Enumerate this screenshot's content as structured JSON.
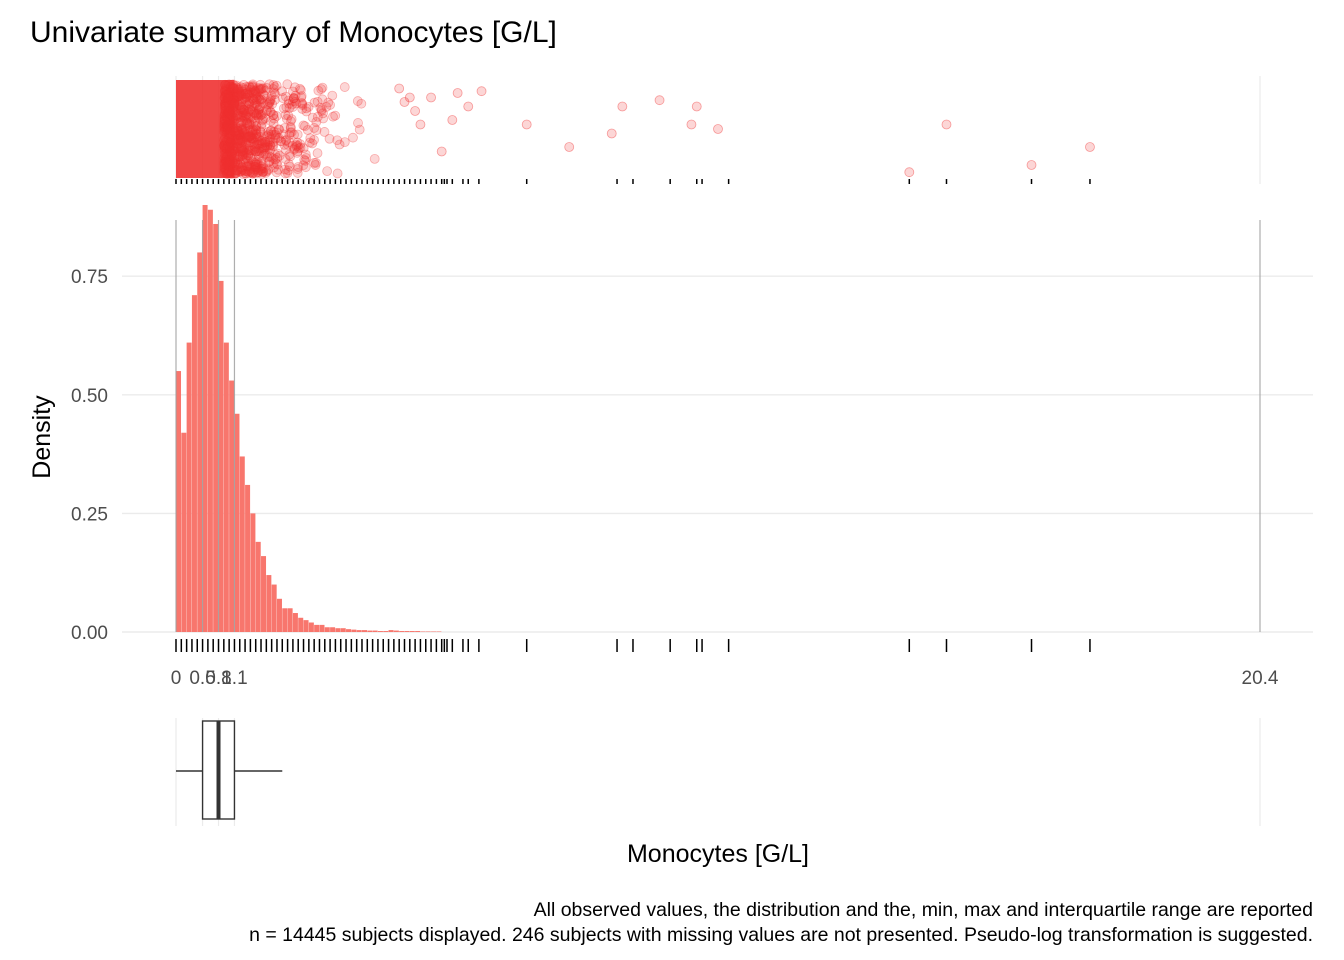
{
  "chart_data": {
    "type": "histogram",
    "title": "Univariate summary of Monocytes [G/L]",
    "xlabel": "Monocytes [G/L]",
    "ylabel": "Density",
    "xlim": [
      0,
      20.4
    ],
    "ylim": [
      0,
      0.9
    ],
    "y_ticks": [
      0,
      0.25,
      0.5,
      0.75
    ],
    "y_tick_labels": [
      "0.00",
      "0.25",
      "0.50",
      "0.75"
    ],
    "x_tick_values": [
      0,
      0.5,
      0.8,
      1.1,
      20.4
    ],
    "x_tick_labels": [
      "0",
      "0.5",
      "0.8",
      "1.1",
      "20.4"
    ],
    "grid": true,
    "color": "#F8766D",
    "point_color": "#F03232",
    "bin_width": 0.1,
    "bins": [
      {
        "x0": 0.0,
        "x1": 0.1,
        "density": 0.55
      },
      {
        "x0": 0.1,
        "x1": 0.2,
        "density": 0.42
      },
      {
        "x0": 0.2,
        "x1": 0.3,
        "density": 0.61
      },
      {
        "x0": 0.3,
        "x1": 0.4,
        "density": 0.71
      },
      {
        "x0": 0.4,
        "x1": 0.5,
        "density": 0.8
      },
      {
        "x0": 0.5,
        "x1": 0.6,
        "density": 0.9
      },
      {
        "x0": 0.6,
        "x1": 0.7,
        "density": 0.89
      },
      {
        "x0": 0.7,
        "x1": 0.8,
        "density": 0.86
      },
      {
        "x0": 0.8,
        "x1": 0.9,
        "density": 0.74
      },
      {
        "x0": 0.9,
        "x1": 1.0,
        "density": 0.61
      },
      {
        "x0": 1.0,
        "x1": 1.1,
        "density": 0.53
      },
      {
        "x0": 1.1,
        "x1": 1.2,
        "density": 0.46
      },
      {
        "x0": 1.2,
        "x1": 1.3,
        "density": 0.37
      },
      {
        "x0": 1.3,
        "x1": 1.4,
        "density": 0.31
      },
      {
        "x0": 1.4,
        "x1": 1.5,
        "density": 0.25
      },
      {
        "x0": 1.5,
        "x1": 1.6,
        "density": 0.19
      },
      {
        "x0": 1.6,
        "x1": 1.7,
        "density": 0.16
      },
      {
        "x0": 1.7,
        "x1": 1.8,
        "density": 0.12
      },
      {
        "x0": 1.8,
        "x1": 1.9,
        "density": 0.1
      },
      {
        "x0": 1.9,
        "x1": 2.0,
        "density": 0.07
      },
      {
        "x0": 2.0,
        "x1": 2.1,
        "density": 0.05
      },
      {
        "x0": 2.1,
        "x1": 2.2,
        "density": 0.05
      },
      {
        "x0": 2.2,
        "x1": 2.3,
        "density": 0.04
      },
      {
        "x0": 2.3,
        "x1": 2.4,
        "density": 0.03
      },
      {
        "x0": 2.4,
        "x1": 2.5,
        "density": 0.025
      },
      {
        "x0": 2.5,
        "x1": 2.6,
        "density": 0.02
      },
      {
        "x0": 2.6,
        "x1": 2.7,
        "density": 0.015
      },
      {
        "x0": 2.7,
        "x1": 2.8,
        "density": 0.015
      },
      {
        "x0": 2.8,
        "x1": 2.9,
        "density": 0.01
      },
      {
        "x0": 2.9,
        "x1": 3.0,
        "density": 0.01
      },
      {
        "x0": 3.0,
        "x1": 3.1,
        "density": 0.008
      },
      {
        "x0": 3.1,
        "x1": 3.2,
        "density": 0.008
      },
      {
        "x0": 3.2,
        "x1": 3.3,
        "density": 0.006
      },
      {
        "x0": 3.3,
        "x1": 3.4,
        "density": 0.005
      },
      {
        "x0": 3.4,
        "x1": 3.5,
        "density": 0.004
      },
      {
        "x0": 3.5,
        "x1": 3.6,
        "density": 0.004
      },
      {
        "x0": 3.6,
        "x1": 3.7,
        "density": 0.003
      },
      {
        "x0": 3.7,
        "x1": 3.8,
        "density": 0.003
      },
      {
        "x0": 3.8,
        "x1": 3.9,
        "density": 0.002
      },
      {
        "x0": 3.9,
        "x1": 4.0,
        "density": 0.002
      },
      {
        "x0": 4.0,
        "x1": 4.1,
        "density": 0.004
      },
      {
        "x0": 4.1,
        "x1": 4.2,
        "density": 0.003
      },
      {
        "x0": 4.2,
        "x1": 4.3,
        "density": 0.002
      },
      {
        "x0": 4.3,
        "x1": 4.4,
        "density": 0.002
      },
      {
        "x0": 4.4,
        "x1": 4.5,
        "density": 0.002
      },
      {
        "x0": 4.5,
        "x1": 4.6,
        "density": 0.002
      },
      {
        "x0": 4.6,
        "x1": 4.7,
        "density": 0.001
      },
      {
        "x0": 4.7,
        "x1": 4.8,
        "density": 0.001
      },
      {
        "x0": 4.8,
        "x1": 4.9,
        "density": 0.001
      },
      {
        "x0": 4.9,
        "x1": 5.0,
        "density": 0.001
      }
    ],
    "summary_lines": [
      0,
      0.5,
      0.8,
      1.1,
      20.4
    ],
    "boxplot": {
      "min": 0,
      "q1": 0.5,
      "median": 0.8,
      "q3": 1.1,
      "whisker_high": 2.0,
      "max": 20.4
    },
    "rug_values": [
      0.0,
      0.1,
      0.2,
      0.3,
      0.4,
      0.5,
      0.6,
      0.7,
      0.8,
      0.9,
      1.0,
      1.1,
      1.2,
      1.3,
      1.4,
      1.5,
      1.6,
      1.7,
      1.8,
      1.9,
      2.0,
      2.1,
      2.2,
      2.3,
      2.4,
      2.5,
      2.6,
      2.7,
      2.8,
      2.9,
      3.0,
      3.1,
      3.2,
      3.3,
      3.4,
      3.5,
      3.6,
      3.7,
      3.8,
      3.9,
      4.0,
      4.1,
      4.2,
      4.3,
      4.4,
      4.5,
      4.6,
      4.7,
      4.8,
      4.9,
      5.0,
      5.05,
      5.1,
      5.2,
      5.4,
      5.5,
      5.7,
      6.6,
      8.3,
      8.6,
      9.3,
      9.8,
      9.9,
      10.4,
      13.8,
      14.5,
      16.1,
      17.2
    ],
    "outlier_points": [
      {
        "x": 4.2,
        "y": 0.95
      },
      {
        "x": 4.3,
        "y": 0.8
      },
      {
        "x": 4.4,
        "y": 0.85
      },
      {
        "x": 4.5,
        "y": 0.7
      },
      {
        "x": 4.6,
        "y": 0.55
      },
      {
        "x": 4.8,
        "y": 0.85
      },
      {
        "x": 5.0,
        "y": 0.25
      },
      {
        "x": 5.2,
        "y": 0.6
      },
      {
        "x": 5.3,
        "y": 0.9
      },
      {
        "x": 5.5,
        "y": 0.75
      },
      {
        "x": 5.75,
        "y": 0.92
      },
      {
        "x": 6.6,
        "y": 0.55
      },
      {
        "x": 7.4,
        "y": 0.3
      },
      {
        "x": 8.2,
        "y": 0.45
      },
      {
        "x": 8.4,
        "y": 0.75
      },
      {
        "x": 9.1,
        "y": 0.82
      },
      {
        "x": 9.7,
        "y": 0.55
      },
      {
        "x": 9.8,
        "y": 0.75
      },
      {
        "x": 10.2,
        "y": 0.5
      },
      {
        "x": 13.8,
        "y": 0.02
      },
      {
        "x": 14.5,
        "y": 0.55
      },
      {
        "x": 16.1,
        "y": 0.1
      },
      {
        "x": 17.2,
        "y": 0.3
      }
    ],
    "caption_lines": [
      "All observed values, the distribution and the, min, max and interquartile range are reported",
      "n = 14445 subjects displayed. 246 subjects with missing values are not presented. Pseudo-log transformation is suggested."
    ]
  }
}
